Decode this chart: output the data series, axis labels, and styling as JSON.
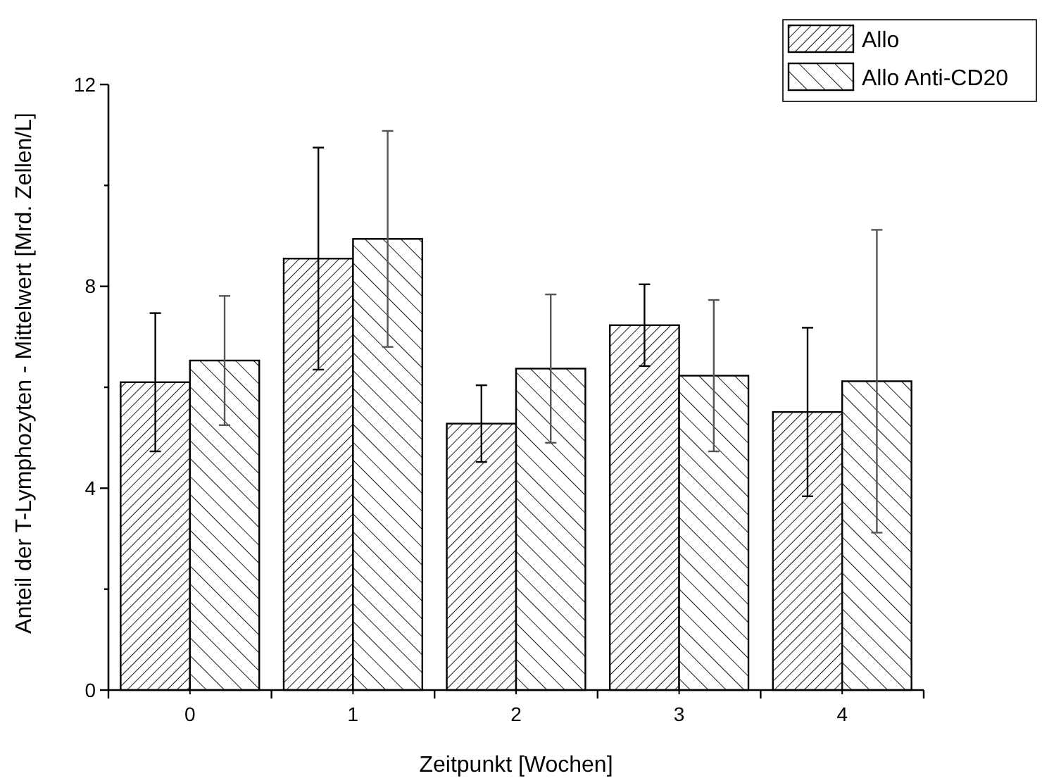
{
  "chart_data": {
    "type": "bar",
    "xlabel": "Zeitpunkt [Wochen]",
    "ylabel": "Anteil der T-Lymphozyten - Mittelwert [Mrd. Zellen/L]",
    "categories": [
      "0",
      "1",
      "2",
      "3",
      "4"
    ],
    "series": [
      {
        "name": "Allo",
        "color": "#000000",
        "values": [
          6.1,
          8.55,
          5.28,
          7.23,
          5.51
        ],
        "errors": [
          1.37,
          2.2,
          0.76,
          0.81,
          1.67
        ]
      },
      {
        "name": "Allo Anti-CD20",
        "color": "#000000",
        "values": [
          6.53,
          8.94,
          6.37,
          6.23,
          6.12
        ],
        "errors": [
          1.28,
          2.14,
          1.47,
          1.5,
          3.0
        ]
      }
    ],
    "ylim": [
      0,
      12
    ],
    "yticks": [
      0,
      {
        "value": 2,
        "label": null
      },
      4,
      {
        "value": 6,
        "label": null
      },
      8,
      {
        "value": 10,
        "label": null
      },
      12
    ],
    "legend": "top right",
    "grid": false
  }
}
